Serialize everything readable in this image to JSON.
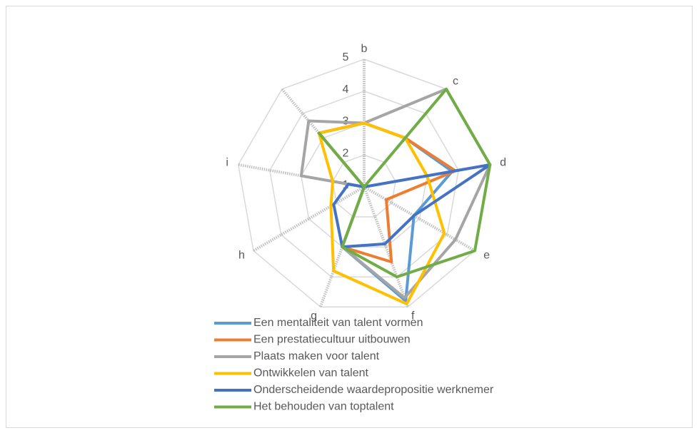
{
  "chart_data": {
    "type": "radar",
    "categories": [
      "b",
      "c",
      "d",
      "e",
      "f",
      "g",
      "h",
      "i",
      null
    ],
    "ylim": [
      1,
      5
    ],
    "yticks": [
      1,
      2,
      3,
      4,
      5
    ],
    "grid": true,
    "legend": "bottom",
    "series": [
      {
        "name": "Een mentaliteit van talent vormen",
        "color": "#5b9bd5",
        "values": [
          3,
          3,
          3.8,
          2.8,
          4.8,
          3,
          1,
          1,
          3.2
        ]
      },
      {
        "name": "Een prestatiecultuur uitbouwen",
        "color": "#ed7d31",
        "values": [
          3,
          3,
          3.9,
          1.8,
          3.5,
          3,
          1,
          1,
          3.2
        ]
      },
      {
        "name": "Plaats maken voor talent",
        "color": "#a5a5a5",
        "values": [
          3,
          5,
          5,
          4.3,
          4.7,
          3,
          1,
          3,
          3.7
        ]
      },
      {
        "name": "Ontwikkelen van talent",
        "color": "#ffc000",
        "values": [
          3,
          3,
          3,
          3.9,
          4.9,
          3.8,
          2.2,
          2,
          3.2
        ]
      },
      {
        "name": "Onderscheidende waardepropositie werknemer",
        "color": "#4472c4",
        "values": [
          1,
          1,
          5,
          2.8,
          2.9,
          3,
          2.1,
          1.5,
          1
        ]
      },
      {
        "name": "Het behouden van toptalent",
        "color": "#70ad47",
        "values": [
          1,
          5,
          5,
          5,
          4,
          3,
          1,
          1,
          3.2
        ]
      }
    ]
  }
}
